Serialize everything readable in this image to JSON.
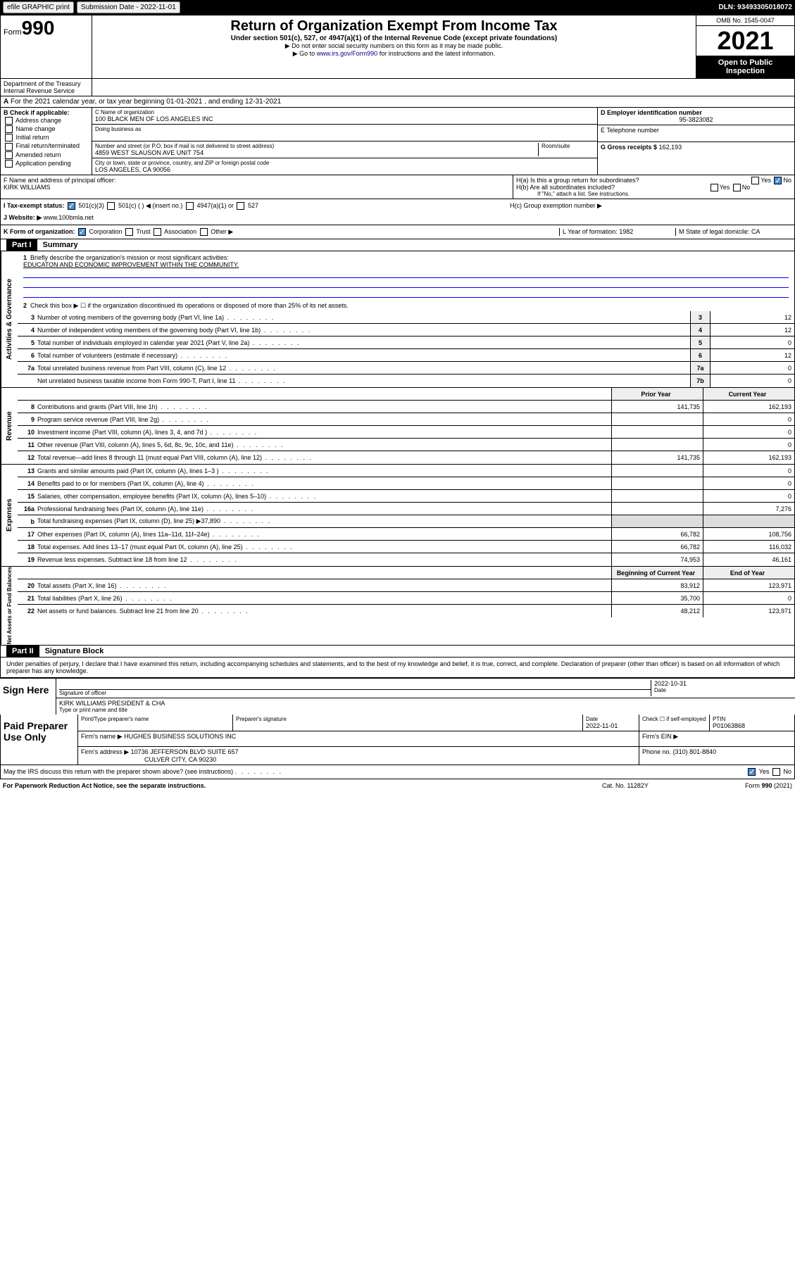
{
  "topbar": {
    "efile": "efile GRAPHIC print",
    "submission_label": "Submission Date - 2022-11-01",
    "dln": "DLN: 93493305018072"
  },
  "header": {
    "form_label": "Form",
    "form_num": "990",
    "title": "Return of Organization Exempt From Income Tax",
    "subtitle": "Under section 501(c), 527, or 4947(a)(1) of the Internal Revenue Code (except private foundations)",
    "note1": "▶ Do not enter social security numbers on this form as it may be made public.",
    "note2_pre": "▶ Go to ",
    "note2_link": "www.irs.gov/Form990",
    "note2_post": " for instructions and the latest information.",
    "omb": "OMB No. 1545-0047",
    "year": "2021",
    "open": "Open to Public Inspection",
    "dept": "Department of the Treasury Internal Revenue Service"
  },
  "sectionA": {
    "text": "For the 2021 calendar year, or tax year beginning 01-01-2021   , and ending 12-31-2021"
  },
  "sectionB": {
    "label": "B Check if applicable:",
    "opts": [
      "Address change",
      "Name change",
      "Initial return",
      "Final return/terminated",
      "Amended return",
      "Application pending"
    ]
  },
  "sectionC": {
    "name_label": "C Name of organization",
    "name": "100 BLACK MEN OF LOS ANGELES INC",
    "dba_label": "Doing business as",
    "addr_label": "Number and street (or P.O. box if mail is not delivered to street address)",
    "room_label": "Room/suite",
    "addr": "4859 WEST SLAUSON AVE UNIT 754",
    "city_label": "City or town, state or province, country, and ZIP or foreign postal code",
    "city": "LOS ANGELES, CA  90056"
  },
  "sectionD": {
    "label": "D Employer identification number",
    "value": "95-3823082"
  },
  "sectionE": {
    "label": "E Telephone number",
    "value": ""
  },
  "sectionG": {
    "label": "G Gross receipts $",
    "value": "162,193"
  },
  "sectionF": {
    "label": "F Name and address of principal officer:",
    "name": "KIRK WILLIAMS"
  },
  "sectionH": {
    "ha": "H(a)  Is this a group return for subordinates?",
    "hb": "H(b)  Are all subordinates included?",
    "hb_note": "If \"No,\" attach a list. See instructions.",
    "hc": "H(c)  Group exemption number ▶",
    "yes": "Yes",
    "no": "No"
  },
  "sectionI": {
    "label": "I   Tax-exempt status:",
    "opt1": "501(c)(3)",
    "opt2": "501(c) (  ) ◀ (insert no.)",
    "opt3": "4947(a)(1) or",
    "opt4": "527"
  },
  "sectionJ": {
    "label": "J   Website: ▶",
    "value": "www.100bmla.net"
  },
  "sectionK": {
    "label": "K Form of organization:",
    "opts": [
      "Corporation",
      "Trust",
      "Association",
      "Other ▶"
    ]
  },
  "sectionL": {
    "label": "L Year of formation: 1982"
  },
  "sectionM": {
    "label": "M State of legal domicile: CA"
  },
  "part1": {
    "header": "Part I",
    "title": "Summary",
    "q1": "Briefly describe the organization's mission or most significant activities:",
    "mission": "EDUCATON AND ECONOMIC IMPROVEMENT WITHIN THE COMMUNITY.",
    "q2": "Check this box ▶ ☐ if the organization discontinued its operations or disposed of more than 25% of its net assets.",
    "lines_gov": [
      {
        "n": "3",
        "t": "Number of voting members of the governing body (Part VI, line 1a)",
        "box": "3",
        "v": "12"
      },
      {
        "n": "4",
        "t": "Number of independent voting members of the governing body (Part VI, line 1b)",
        "box": "4",
        "v": "12"
      },
      {
        "n": "5",
        "t": "Total number of individuals employed in calendar year 2021 (Part V, line 2a)",
        "box": "5",
        "v": "0"
      },
      {
        "n": "6",
        "t": "Total number of volunteers (estimate if necessary)",
        "box": "6",
        "v": "12"
      },
      {
        "n": "7a",
        "t": "Total unrelated business revenue from Part VIII, column (C), line 12",
        "box": "7a",
        "v": "0"
      },
      {
        "n": "",
        "t": "Net unrelated business taxable income from Form 990-T, Part I, line 11",
        "box": "7b",
        "v": "0"
      }
    ],
    "prior_hdr": "Prior Year",
    "current_hdr": "Current Year",
    "lines_rev": [
      {
        "n": "8",
        "t": "Contributions and grants (Part VIII, line 1h)",
        "p": "141,735",
        "c": "162,193"
      },
      {
        "n": "9",
        "t": "Program service revenue (Part VIII, line 2g)",
        "p": "",
        "c": "0"
      },
      {
        "n": "10",
        "t": "Investment income (Part VIII, column (A), lines 3, 4, and 7d )",
        "p": "",
        "c": "0"
      },
      {
        "n": "11",
        "t": "Other revenue (Part VIII, column (A), lines 5, 6d, 8c, 9c, 10c, and 11e)",
        "p": "",
        "c": "0"
      },
      {
        "n": "12",
        "t": "Total revenue—add lines 8 through 11 (must equal Part VIII, column (A), line 12)",
        "p": "141,735",
        "c": "162,193"
      }
    ],
    "lines_exp": [
      {
        "n": "13",
        "t": "Grants and similar amounts paid (Part IX, column (A), lines 1–3 )",
        "p": "",
        "c": "0"
      },
      {
        "n": "14",
        "t": "Benefits paid to or for members (Part IX, column (A), line 4)",
        "p": "",
        "c": "0"
      },
      {
        "n": "15",
        "t": "Salaries, other compensation, employee benefits (Part IX, column (A), lines 5–10)",
        "p": "",
        "c": "0"
      },
      {
        "n": "16a",
        "t": "Professional fundraising fees (Part IX, column (A), line 11e)",
        "p": "",
        "c": "7,276"
      },
      {
        "n": "b",
        "t": "Total fundraising expenses (Part IX, column (D), line 25) ▶37,890",
        "p": "shaded",
        "c": "shaded"
      },
      {
        "n": "17",
        "t": "Other expenses (Part IX, column (A), lines 11a–11d, 11f–24e)",
        "p": "66,782",
        "c": "108,756"
      },
      {
        "n": "18",
        "t": "Total expenses. Add lines 13–17 (must equal Part IX, column (A), line 25)",
        "p": "66,782",
        "c": "116,032"
      },
      {
        "n": "19",
        "t": "Revenue less expenses. Subtract line 18 from line 12",
        "p": "74,953",
        "c": "46,161"
      }
    ],
    "begin_hdr": "Beginning of Current Year",
    "end_hdr": "End of Year",
    "lines_net": [
      {
        "n": "20",
        "t": "Total assets (Part X, line 16)",
        "p": "83,912",
        "c": "123,971"
      },
      {
        "n": "21",
        "t": "Total liabilities (Part X, line 26)",
        "p": "35,700",
        "c": "0"
      },
      {
        "n": "22",
        "t": "Net assets or fund balances. Subtract line 21 from line 20",
        "p": "48,212",
        "c": "123,971"
      }
    ],
    "vert_gov": "Activities & Governance",
    "vert_rev": "Revenue",
    "vert_exp": "Expenses",
    "vert_net": "Net Assets or Fund Balances"
  },
  "part2": {
    "header": "Part II",
    "title": "Signature Block",
    "declaration": "Under penalties of perjury, I declare that I have examined this return, including accompanying schedules and statements, and to the best of my knowledge and belief, it is true, correct, and complete. Declaration of preparer (other than officer) is based on all information of which preparer has any knowledge.",
    "sign_here": "Sign Here",
    "sig_officer": "Signature of officer",
    "date_label": "Date",
    "sig_date": "2022-10-31",
    "officer_name": "KIRK WILLIAMS PRESIDENT & CHA",
    "type_name": "Type or print name and title",
    "paid": "Paid Preparer Use Only",
    "prep_name_label": "Print/Type preparer's name",
    "prep_sig_label": "Preparer's signature",
    "prep_date_label": "Date",
    "prep_date": "2022-11-01",
    "check_self": "Check ☐ if self-employed",
    "ptin_label": "PTIN",
    "ptin": "P01063868",
    "firm_name_label": "Firm's name    ▶",
    "firm_name": "HUGHES BUSINESS SOLUTIONS INC",
    "firm_ein_label": "Firm's EIN ▶",
    "firm_addr_label": "Firm's address ▶",
    "firm_addr": "10736 JEFFERSON BLVD SUITE 657",
    "firm_city": "CULVER CITY, CA  90230",
    "phone_label": "Phone no.",
    "phone": "(310) 801-8840",
    "discuss": "May the IRS discuss this return with the preparer shown above? (see instructions)",
    "paperwork": "For Paperwork Reduction Act Notice, see the separate instructions.",
    "cat": "Cat. No. 11282Y",
    "form_foot": "Form 990 (2021)"
  }
}
